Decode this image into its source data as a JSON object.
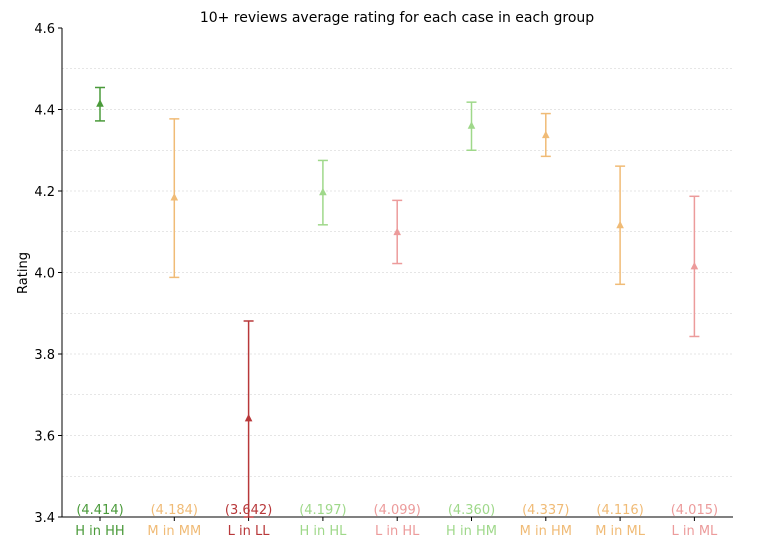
{
  "chart_data": {
    "type": "scatter",
    "title": "10+ reviews average rating for each case in each group",
    "xlabel": "",
    "ylabel": "Rating",
    "ylim": [
      3.4,
      4.6
    ],
    "yticks": [
      "3.4",
      "3.6",
      "3.8",
      "4.0",
      "4.2",
      "4.4",
      "4.6"
    ],
    "grid": "horizontal dashed",
    "legend": "none",
    "categories": [
      "H in HH",
      "M in MM",
      "L in LL",
      "H in HL",
      "L in HL",
      "H in HM",
      "M in HM",
      "M in ML",
      "L in ML"
    ],
    "values": [
      4.414,
      4.184,
      3.642,
      4.197,
      4.099,
      4.36,
      4.337,
      4.116,
      4.015
    ],
    "value_labels": [
      "(4.414)",
      "(4.184)",
      "(3.642)",
      "(4.197)",
      "(4.099)",
      "(4.360)",
      "(4.337)",
      "(4.116)",
      "(4.015)"
    ],
    "error_low": [
      4.372,
      3.988,
      3.4,
      4.117,
      4.022,
      4.3,
      4.285,
      3.971,
      3.843
    ],
    "error_high": [
      4.454,
      4.377,
      3.881,
      4.275,
      4.177,
      4.418,
      4.39,
      4.261,
      4.187
    ],
    "colors": [
      "#4a9a3a",
      "#f0bb76",
      "#b8383a",
      "#9fd88a",
      "#ec9b9b",
      "#9fd88a",
      "#f0bb76",
      "#f0bb76",
      "#ec9b9b"
    ],
    "label_colors": [
      "#4a9a3a",
      "#f0bb76",
      "#b8383a",
      "#9fd88a",
      "#ec9b9b",
      "#9fd88a",
      "#f0bb76",
      "#f0bb76",
      "#ec9b9b"
    ]
  }
}
